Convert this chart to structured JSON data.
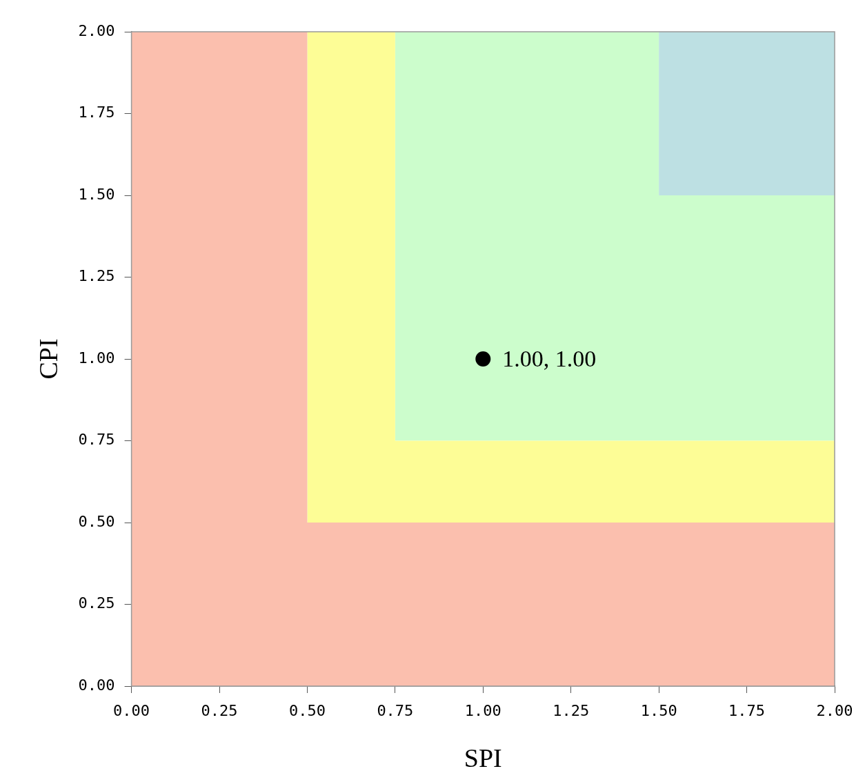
{
  "chart_data": {
    "type": "area",
    "stacked": true,
    "xlabel": "SPI",
    "ylabel": "CPI",
    "xlim": [
      0,
      2
    ],
    "ylim": [
      0,
      2
    ],
    "xticks": [
      {
        "value": 0,
        "label": "0.00"
      },
      {
        "value": 0.25,
        "label": "0.25"
      },
      {
        "value": 0.5,
        "label": "0.50"
      },
      {
        "value": 0.75,
        "label": "0.75"
      },
      {
        "value": 1,
        "label": "1.00"
      },
      {
        "value": 1.25,
        "label": "1.25"
      },
      {
        "value": 1.5,
        "label": "1.50"
      },
      {
        "value": 1.75,
        "label": "1.75"
      },
      {
        "value": 2,
        "label": "2.00"
      }
    ],
    "yticks": [
      {
        "value": 0,
        "label": "0.00"
      },
      {
        "value": 0.25,
        "label": "0.25"
      },
      {
        "value": 0.5,
        "label": "0.50"
      },
      {
        "value": 0.75,
        "label": "0.75"
      },
      {
        "value": 1,
        "label": "1.00"
      },
      {
        "value": 1.25,
        "label": "1.25"
      },
      {
        "value": 1.5,
        "label": "1.50"
      },
      {
        "value": 1.75,
        "label": "1.75"
      },
      {
        "value": 2,
        "label": "2.00"
      }
    ],
    "grid": false,
    "legend": false,
    "x": [
      0,
      0.5,
      0.5,
      0.75,
      0.75,
      1.5,
      1.5,
      2
    ],
    "series": [
      {
        "color": "#fbbfae",
        "values": [
          2,
          2,
          0.5,
          0.5,
          0.5,
          0.5,
          0.5,
          0.5
        ]
      },
      {
        "color": "#fdfd96",
        "values": [
          0,
          0,
          1.5,
          1.5,
          0.25,
          0.25,
          0.25,
          0.25
        ]
      },
      {
        "color": "#ccfdcc",
        "values": [
          0,
          0,
          0,
          0,
          1.25,
          1.25,
          0.75,
          0.75
        ]
      },
      {
        "color": "#bde0e3",
        "values": [
          0,
          0,
          0,
          0,
          0,
          0,
          0.5,
          0.5
        ]
      },
      {
        "type": "scatter",
        "color": "#000000",
        "marker": "circle",
        "x": [
          1
        ],
        "values": [
          1
        ]
      }
    ],
    "annotations": [
      {
        "text": "1.00, 1.00",
        "x": 1,
        "y": 1
      }
    ]
  }
}
